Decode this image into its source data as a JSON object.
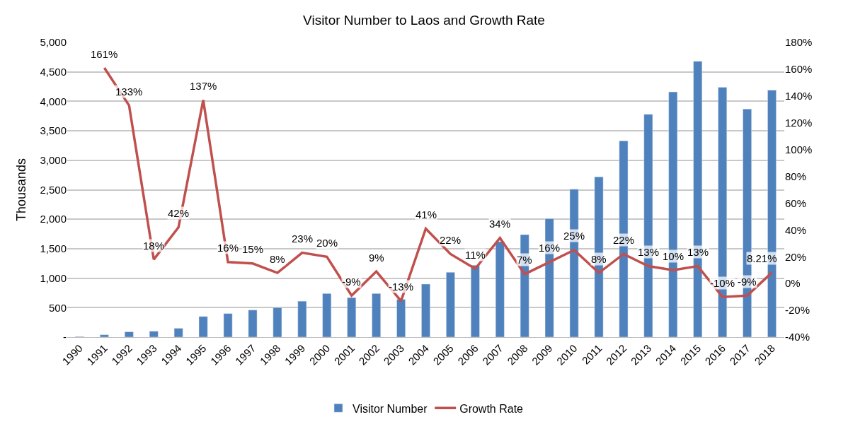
{
  "chart_data": {
    "type": "bar",
    "title": "Visitor Number to Laos and Growth Rate",
    "ylabel": "Thousands",
    "categories": [
      "1990",
      "1991",
      "1992",
      "1993",
      "1994",
      "1995",
      "1996",
      "1997",
      "1998",
      "1999",
      "2000",
      "2001",
      "2002",
      "2003",
      "2004",
      "2005",
      "2006",
      "2007",
      "2008",
      "2009",
      "2010",
      "2011",
      "2012",
      "2013",
      "2014",
      "2015",
      "2016",
      "2017",
      "2018"
    ],
    "series": [
      {
        "name": "Visitor Number",
        "color": "#4f81bd",
        "values": [
          10,
          40,
          90,
          100,
          150,
          350,
          400,
          460,
          500,
          610,
          740,
          670,
          740,
          640,
          900,
          1100,
          1220,
          1620,
          1740,
          2010,
          2510,
          2720,
          3330,
          3780,
          4160,
          4680,
          4240,
          3870,
          4190
        ]
      },
      {
        "name": "Growth Rate",
        "type": "line",
        "axis": "y2",
        "color": "#c0504d",
        "values": [
          null,
          161,
          133,
          18,
          42,
          137,
          16,
          15,
          8,
          23,
          20,
          -9,
          9,
          -13,
          41,
          22,
          11,
          34,
          7,
          16,
          25,
          8,
          22,
          13,
          10,
          13,
          -10,
          -9,
          8.21
        ],
        "value_labels": [
          null,
          "161%",
          "133%",
          "18%",
          "42%",
          "137%",
          "16%",
          "15%",
          "8%",
          "23%",
          "20%",
          "-9%",
          "9%",
          "-13%",
          "41%",
          "22%",
          "11%",
          "34%",
          "7%",
          "16%",
          "25%",
          "8%",
          "22%",
          "13%",
          "10%",
          "13%",
          "-10%",
          "-9%",
          "8.21%"
        ]
      }
    ],
    "ylim": [
      0,
      5000
    ],
    "yticks": [
      {
        "value": 0,
        "label": "-"
      },
      {
        "value": 500,
        "label": "500"
      },
      {
        "value": 1000,
        "label": "1,000"
      },
      {
        "value": 1500,
        "label": "1,500"
      },
      {
        "value": 2000,
        "label": "2,000"
      },
      {
        "value": 2500,
        "label": "2,500"
      },
      {
        "value": 3000,
        "label": "3,000"
      },
      {
        "value": 3500,
        "label": "3,500"
      },
      {
        "value": 4000,
        "label": "4,000"
      },
      {
        "value": 4500,
        "label": "4,500"
      },
      {
        "value": 5000,
        "label": "5,000"
      }
    ],
    "y2lim": [
      -40,
      180
    ],
    "y2ticks": [
      {
        "value": -40,
        "label": "-40%"
      },
      {
        "value": -20,
        "label": "-20%"
      },
      {
        "value": 0,
        "label": "0%"
      },
      {
        "value": 20,
        "label": "20%"
      },
      {
        "value": 40,
        "label": "40%"
      },
      {
        "value": 60,
        "label": "60%"
      },
      {
        "value": 80,
        "label": "80%"
      },
      {
        "value": 100,
        "label": "100%"
      },
      {
        "value": 120,
        "label": "120%"
      },
      {
        "value": 140,
        "label": "140%"
      },
      {
        "value": 160,
        "label": "160%"
      },
      {
        "value": 180,
        "label": "180%"
      }
    ],
    "grid": "y",
    "legend": "bottom",
    "line_style": "solid",
    "marker": "none"
  }
}
